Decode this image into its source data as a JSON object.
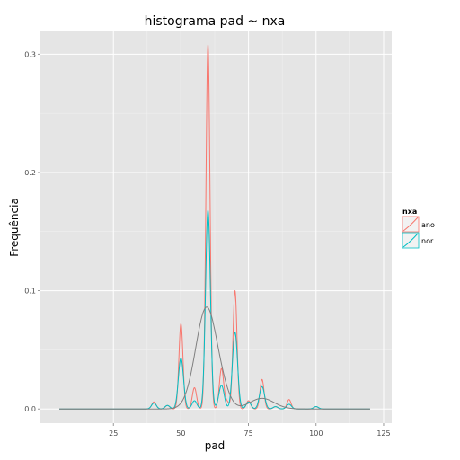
{
  "chart_data": {
    "type": "line",
    "title": "histograma pad ~ nxa",
    "xlabel": "pad",
    "ylabel": "Frequência",
    "xlim": [
      -2,
      128
    ],
    "ylim": [
      -0.012,
      0.32
    ],
    "x_ticks": [
      25,
      50,
      75,
      100,
      125
    ],
    "x_tick_labels": [
      "25",
      "50",
      "75",
      "100",
      "125"
    ],
    "y_ticks": [
      0.0,
      0.1,
      0.2,
      0.3
    ],
    "y_tick_labels": [
      "0.0",
      "0.1",
      "0.2",
      "0.3"
    ],
    "grid": true,
    "legend": {
      "title": "nxa",
      "position": "right",
      "entries": [
        {
          "label": "ano",
          "color": "#F8766D"
        },
        {
          "label": "nor",
          "color": "#00BFC4"
        }
      ]
    },
    "series": [
      {
        "name": "ano",
        "color": "#F8766D",
        "baseline": [
          5,
          120
        ],
        "peaks": [
          {
            "x": 40,
            "y": 0.006,
            "w": 0.8
          },
          {
            "x": 45,
            "y": 0.003,
            "w": 0.8
          },
          {
            "x": 50,
            "y": 0.072,
            "w": 0.75
          },
          {
            "x": 55,
            "y": 0.018,
            "w": 0.8
          },
          {
            "x": 60,
            "y": 0.308,
            "w": 0.75
          },
          {
            "x": 65,
            "y": 0.034,
            "w": 0.8
          },
          {
            "x": 67,
            "y": 0.006,
            "w": 0.8
          },
          {
            "x": 70,
            "y": 0.1,
            "w": 0.75
          },
          {
            "x": 75,
            "y": 0.007,
            "w": 0.8
          },
          {
            "x": 80,
            "y": 0.025,
            "w": 0.75
          },
          {
            "x": 85,
            "y": 0.002,
            "w": 0.8
          },
          {
            "x": 90,
            "y": 0.008,
            "w": 0.75
          },
          {
            "x": 100,
            "y": 0.002,
            "w": 0.8
          }
        ]
      },
      {
        "name": "nor",
        "color": "#00BFC4",
        "baseline": [
          5,
          120
        ],
        "peaks": [
          {
            "x": 40,
            "y": 0.005,
            "w": 0.9
          },
          {
            "x": 45,
            "y": 0.003,
            "w": 0.9
          },
          {
            "x": 50,
            "y": 0.043,
            "w": 0.95
          },
          {
            "x": 55,
            "y": 0.007,
            "w": 0.9
          },
          {
            "x": 60,
            "y": 0.168,
            "w": 0.9
          },
          {
            "x": 65,
            "y": 0.02,
            "w": 1.0
          },
          {
            "x": 70,
            "y": 0.065,
            "w": 0.95
          },
          {
            "x": 75,
            "y": 0.006,
            "w": 0.9
          },
          {
            "x": 80,
            "y": 0.019,
            "w": 0.95
          },
          {
            "x": 85,
            "y": 0.002,
            "w": 0.9
          },
          {
            "x": 90,
            "y": 0.004,
            "w": 0.9
          },
          {
            "x": 100,
            "y": 0.002,
            "w": 0.9
          }
        ]
      },
      {
        "name": "",
        "color": "#7f7f7f",
        "baseline": [
          5,
          120
        ],
        "peaks": [
          {
            "x": 59.5,
            "y": 0.086,
            "w": 4.0
          },
          {
            "x": 66,
            "y": 0.005,
            "w": 2.5
          },
          {
            "x": 80,
            "y": 0.009,
            "w": 4.5
          }
        ]
      }
    ]
  }
}
